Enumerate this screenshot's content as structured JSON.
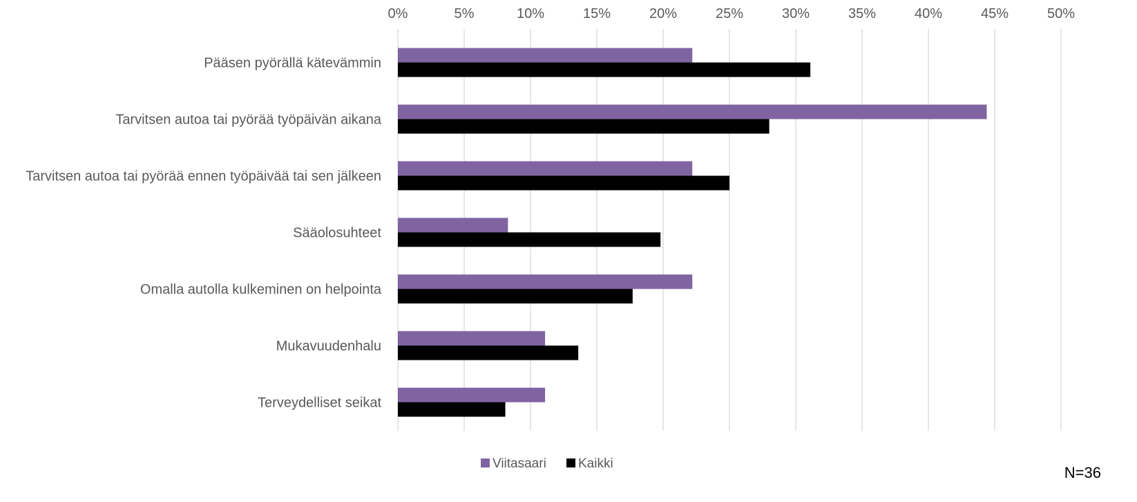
{
  "chart_data": {
    "type": "bar",
    "orientation": "horizontal",
    "categories": [
      "Pääsen pyörällä kätevämmin",
      "Tarvitsen autoa tai pyörää työpäivän aikana",
      "Tarvitsen autoa tai pyörää ennen työpäivää tai sen jälkeen",
      "Sääolosuhteet",
      "Omalla autolla kulkeminen on helpointa",
      "Mukavuudenhalu",
      "Terveydelliset seikat"
    ],
    "series": [
      {
        "name": "Viitasaari",
        "color": "#8064a2",
        "values": [
          22.2,
          44.4,
          22.2,
          8.3,
          22.2,
          11.1,
          11.1
        ]
      },
      {
        "name": "Kaikki",
        "color": "#000000",
        "values": [
          31.1,
          28.0,
          25.0,
          19.8,
          17.7,
          13.6,
          8.1
        ]
      }
    ],
    "xlim": [
      0,
      50
    ],
    "x_ticks": [
      "0%",
      "5%",
      "10%",
      "15%",
      "20%",
      "25%",
      "30%",
      "35%",
      "40%",
      "45%",
      "50%"
    ],
    "x_axis_position": "top",
    "grid": true,
    "legend_position": "bottom",
    "annotation": "N=36",
    "title": "",
    "xlabel": "",
    "ylabel": ""
  }
}
